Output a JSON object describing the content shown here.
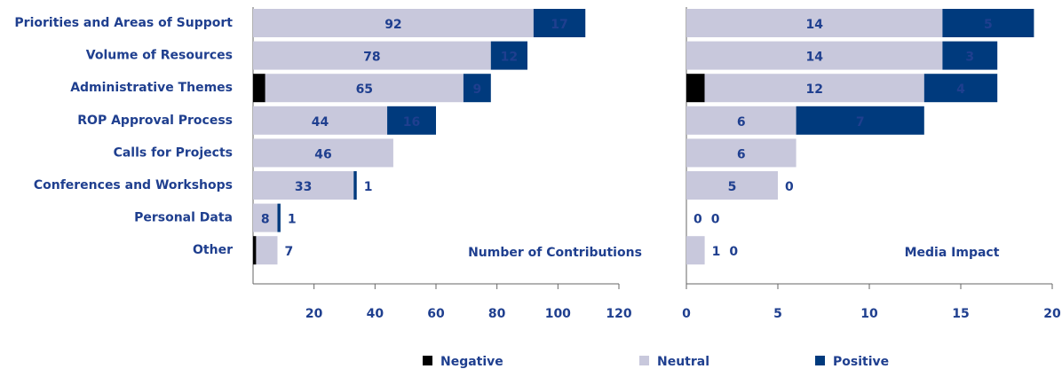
{
  "chart_data": [
    {
      "type": "bar",
      "orientation": "horizontal",
      "stacked": true,
      "title": "Number of Contributions",
      "categories": [
        "Priorities and Areas of Support",
        "Volume of Resources",
        "Administrative Themes",
        "ROP Approval Process",
        "Calls for Projects",
        "Conferences and Workshops",
        "Personal Data",
        "Other"
      ],
      "series": [
        {
          "name": "Negative",
          "color": "#000000",
          "values": [
            null,
            null,
            4,
            null,
            null,
            null,
            null,
            1
          ]
        },
        {
          "name": "Neutral",
          "color": "#c8c8dc",
          "values": [
            92,
            78,
            65,
            44,
            46,
            33,
            8,
            7
          ]
        },
        {
          "name": "Positive",
          "color": "#003a7d",
          "values": [
            17,
            12,
            9,
            16,
            null,
            1,
            1,
            null
          ]
        }
      ],
      "xlim": [
        0,
        120
      ],
      "xticks": [
        20,
        40,
        60,
        80,
        100,
        120
      ]
    },
    {
      "type": "bar",
      "orientation": "horizontal",
      "stacked": true,
      "title": "Media Impact",
      "series": [
        {
          "color": "#000000",
          "values": [
            null,
            null,
            1,
            null,
            null,
            null,
            null,
            null
          ]
        },
        {
          "color": "#c8c8dc",
          "values": [
            14,
            14,
            12,
            6,
            6,
            5,
            0,
            1
          ]
        },
        {
          "color": "#003a7d",
          "values": [
            5,
            3,
            4,
            7,
            null,
            0,
            0,
            0
          ]
        }
      ],
      "xlim": [
        0,
        20
      ],
      "xticks": [
        0,
        5,
        10,
        15,
        20
      ]
    }
  ]
}
